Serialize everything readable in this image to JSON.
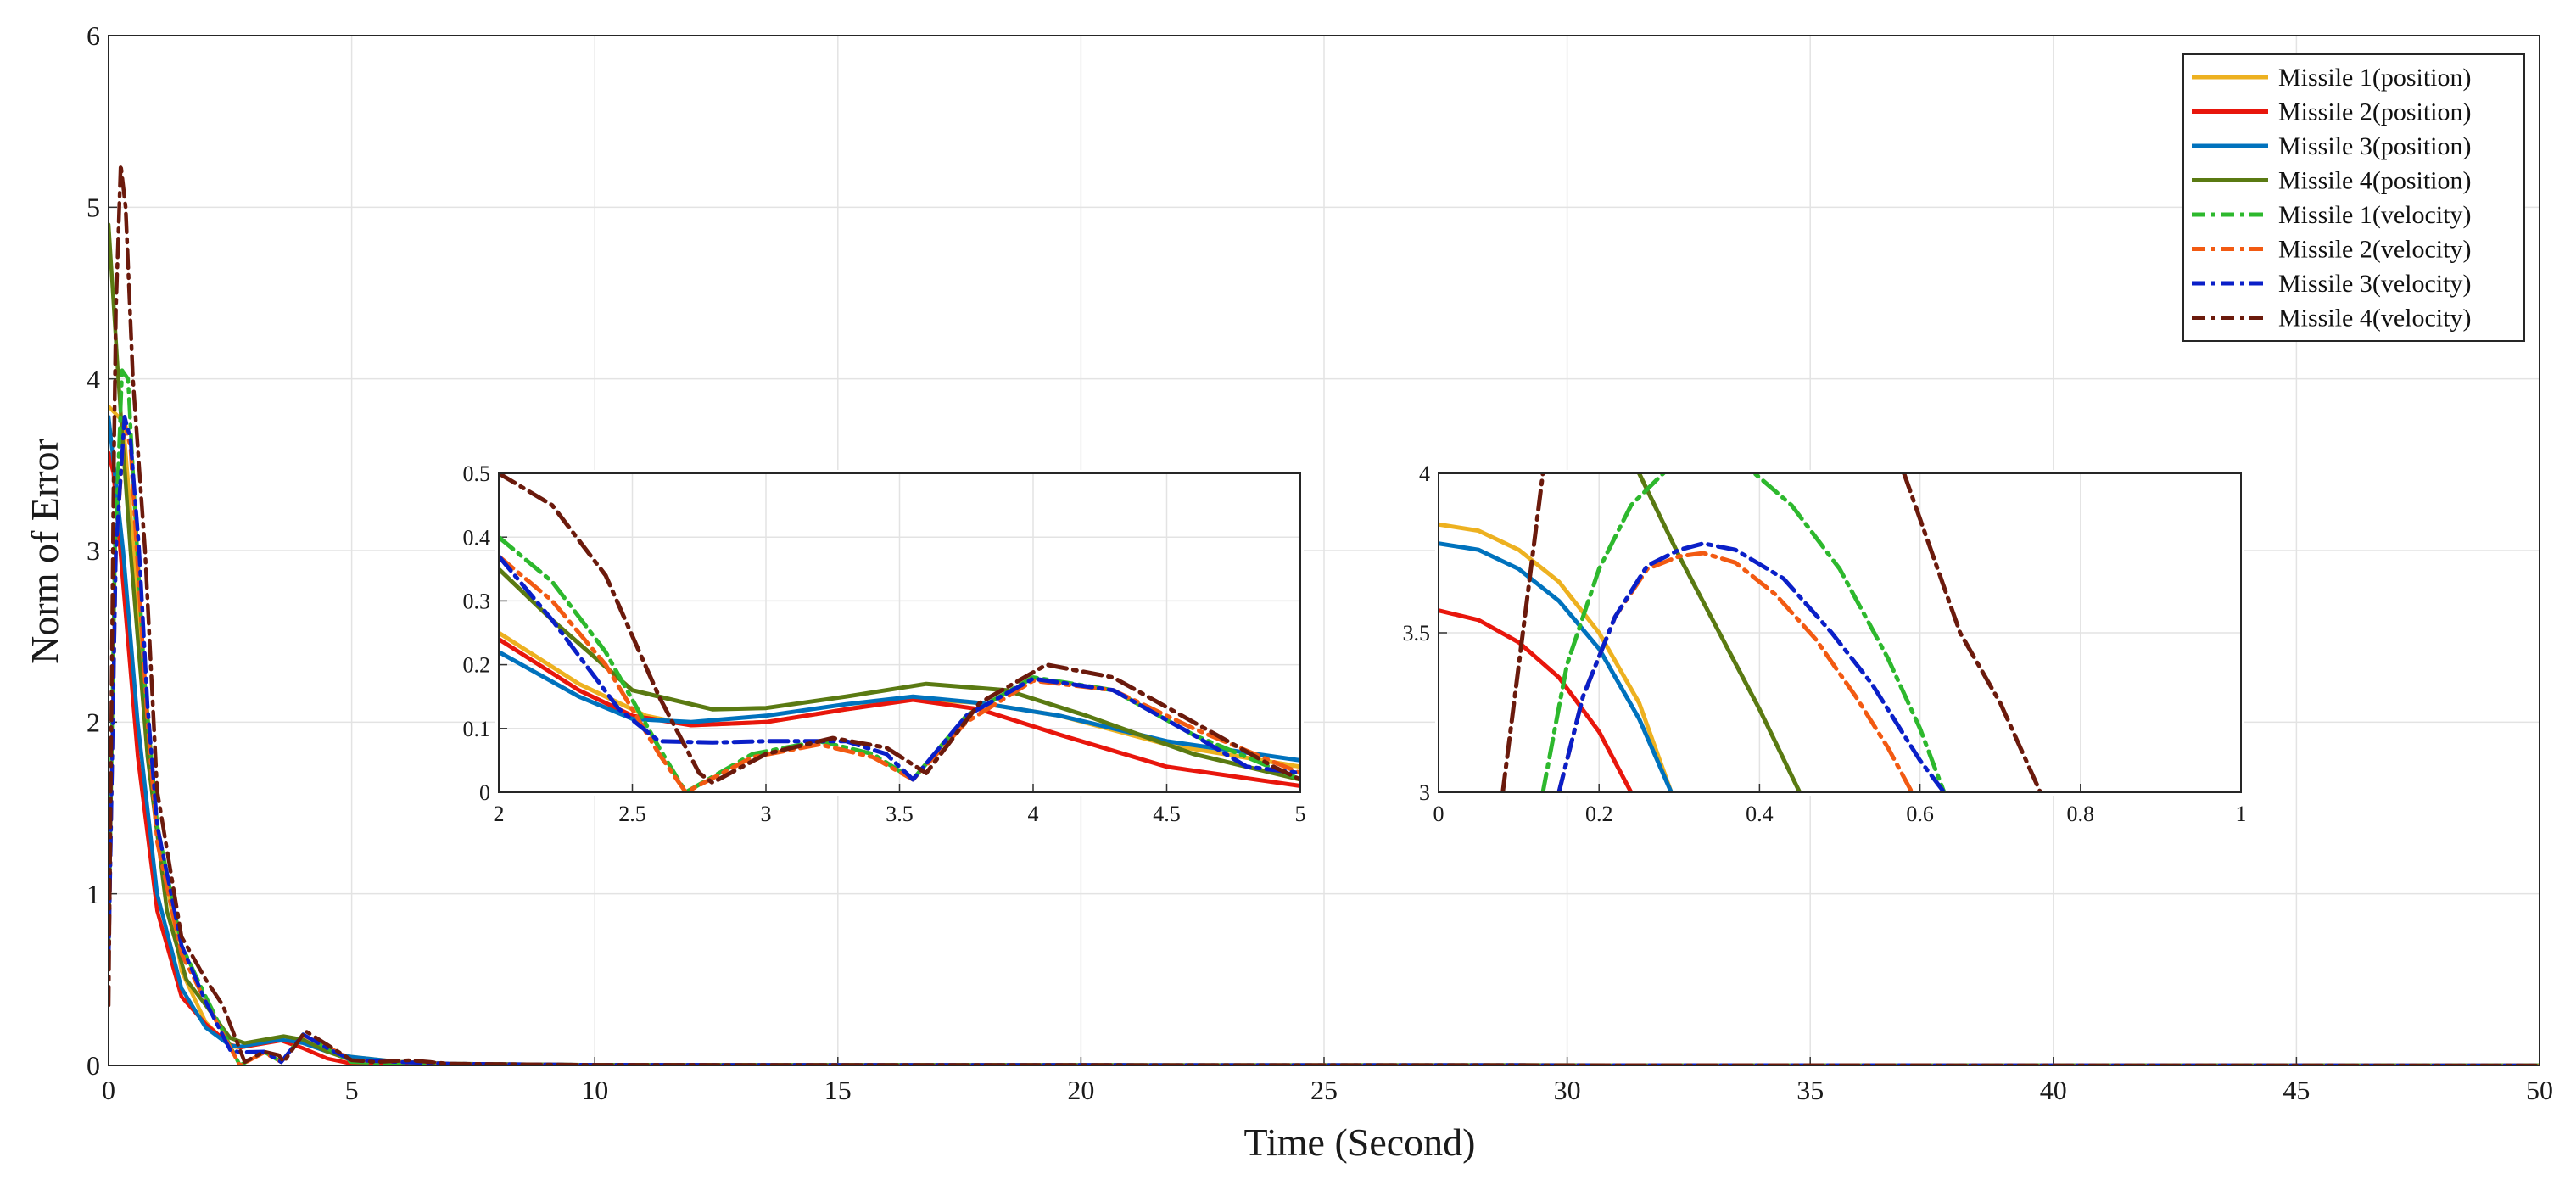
{
  "chart_data": {
    "type": "line",
    "xlabel": "Time (Second)",
    "ylabel": "Norm of Error",
    "xlim": [
      0,
      50
    ],
    "ylim": [
      0,
      6
    ],
    "grid": true,
    "legend_position": "top-right",
    "xticks": [
      "0",
      "5",
      "10",
      "15",
      "20",
      "25",
      "30",
      "35",
      "40",
      "45",
      "50"
    ],
    "yticks": [
      "0",
      "1",
      "2",
      "3",
      "4",
      "5",
      "6"
    ],
    "series": [
      {
        "name": "Missile 1(position)",
        "color": "#EDB120",
        "dash": "solid",
        "x": [
          0,
          0.3,
          0.6,
          1.0,
          1.5,
          2.0,
          2.5,
          2.72,
          3.2,
          3.55,
          4.0,
          4.5,
          5,
          6,
          7,
          10,
          50
        ],
        "y": [
          3.84,
          3.75,
          2.7,
          1.4,
          0.55,
          0.25,
          0.11,
          0.105,
          0.13,
          0.147,
          0.13,
          0.08,
          0.05,
          0.02,
          0.01,
          0.003,
          0.0
        ]
      },
      {
        "name": "Missile 2(position)",
        "color": "#E8160C",
        "dash": "solid",
        "x": [
          0,
          0.1,
          0.24,
          0.6,
          1.0,
          1.5,
          2.0,
          2.5,
          2.72,
          3.55,
          4.0,
          4.5,
          5,
          6,
          7,
          10,
          50
        ],
        "y": [
          3.57,
          3.45,
          3.0,
          1.8,
          0.9,
          0.4,
          0.24,
          0.12,
          0.105,
          0.145,
          0.1,
          0.04,
          0.01,
          0.01,
          0.005,
          0.002,
          0.0
        ]
      },
      {
        "name": "Missile 3(position)",
        "color": "#0072BD",
        "dash": "solid",
        "x": [
          0,
          0.3,
          0.6,
          1.0,
          1.5,
          2.0,
          2.5,
          2.72,
          3.55,
          4.0,
          4.5,
          5,
          6,
          7,
          10,
          50
        ],
        "y": [
          3.78,
          3.0,
          2.0,
          1.0,
          0.45,
          0.22,
          0.115,
          0.11,
          0.15,
          0.13,
          0.08,
          0.05,
          0.02,
          0.01,
          0.003,
          0.0
        ]
      },
      {
        "name": "Missile 4(position)",
        "color": "#5A7A12",
        "dash": "solid",
        "x": [
          0,
          0.2,
          0.45,
          0.8,
          1.2,
          1.6,
          2.0,
          2.5,
          2.8,
          3.6,
          4.0,
          4.5,
          5,
          6,
          7,
          10,
          50
        ],
        "y": [
          4.9,
          4.0,
          3.0,
          1.8,
          0.9,
          0.5,
          0.35,
          0.16,
          0.13,
          0.17,
          0.15,
          0.08,
          0.03,
          0.02,
          0.01,
          0.003,
          0.0
        ]
      },
      {
        "name": "Missile 1(velocity)",
        "color": "#2DB82D",
        "dash": "dashdot",
        "x": [
          0,
          0.13,
          0.28,
          0.4,
          0.55,
          0.75,
          1.0,
          1.5,
          2.0,
          2.7,
          3.2,
          3.55,
          4.0,
          4.5,
          5,
          6,
          7,
          10,
          50
        ],
        "y": [
          0.7,
          3.0,
          4.05,
          4.0,
          3.2,
          2.2,
          1.4,
          0.7,
          0.4,
          0.0,
          0.08,
          0.02,
          0.18,
          0.1,
          0.02,
          0.01,
          0.005,
          0.002,
          0.0
        ]
      },
      {
        "name": "Missile 2(velocity)",
        "color": "#F25A12",
        "dash": "dashdot",
        "x": [
          0,
          0.15,
          0.33,
          0.45,
          0.6,
          0.8,
          1.0,
          1.5,
          2.0,
          2.7,
          3.2,
          3.55,
          4.0,
          4.5,
          5,
          6,
          7,
          10,
          50
        ],
        "y": [
          0.6,
          3.0,
          3.75,
          3.6,
          2.9,
          2.0,
          1.3,
          0.65,
          0.37,
          0.0,
          0.075,
          0.02,
          0.175,
          0.11,
          0.03,
          0.02,
          0.01,
          0.002,
          0.0
        ]
      },
      {
        "name": "Missile 3(velocity)",
        "color": "#0A1FC8",
        "dash": "dashdot",
        "x": [
          0,
          0.15,
          0.33,
          0.45,
          0.63,
          0.8,
          1.0,
          1.5,
          2.0,
          2.5,
          2.7,
          3.2,
          3.55,
          4.0,
          4.5,
          5,
          6,
          7,
          10,
          50
        ],
        "y": [
          0.6,
          3.0,
          3.78,
          3.65,
          3.0,
          2.1,
          1.4,
          0.7,
          0.37,
          0.09,
          0.077,
          0.08,
          0.02,
          0.18,
          0.1,
          0.03,
          0.02,
          0.01,
          0.003,
          0.0
        ]
      },
      {
        "name": "Missile 4(velocity)",
        "color": "#6B1A0C",
        "dash": "dashdot",
        "x": [
          0,
          0.05,
          0.1,
          0.15,
          0.25,
          0.35,
          0.5,
          0.75,
          1.0,
          1.5,
          2.0,
          2.35,
          2.8,
          3.2,
          3.5,
          3.6,
          4.05,
          4.5,
          5,
          5.5,
          6.2,
          7,
          10,
          50
        ],
        "y": [
          0.35,
          1.8,
          3.3,
          4.4,
          5.25,
          5.0,
          4.0,
          3.0,
          1.6,
          0.75,
          0.5,
          0.35,
          0.02,
          0.08,
          0.06,
          0.02,
          0.2,
          0.12,
          0.03,
          0.02,
          0.03,
          0.01,
          0.003,
          0.0
        ]
      }
    ],
    "insets": [
      {
        "xlim": [
          2,
          5
        ],
        "ylim": [
          0,
          0.5
        ],
        "xticks": [
          "2",
          "2.5",
          "3",
          "3.5",
          "4",
          "4.5",
          "5"
        ],
        "yticks": [
          "0",
          "0.1",
          "0.2",
          "0.3",
          "0.4",
          "0.5"
        ],
        "series": [
          {
            "x": [
              2.0,
              2.3,
              2.55,
              2.72,
              3.0,
              3.3,
              3.55,
              3.8,
              4.1,
              4.5,
              5.0
            ],
            "y": [
              0.25,
              0.17,
              0.12,
              0.105,
              0.11,
              0.13,
              0.147,
              0.14,
              0.12,
              0.075,
              0.04
            ]
          },
          {
            "x": [
              2.0,
              2.3,
              2.5,
              2.72,
              3.0,
              3.3,
              3.55,
              3.8,
              4.1,
              4.5,
              5.0
            ],
            "y": [
              0.24,
              0.16,
              0.12,
              0.105,
              0.11,
              0.13,
              0.145,
              0.13,
              0.09,
              0.04,
              0.01
            ]
          },
          {
            "x": [
              2.0,
              2.3,
              2.5,
              2.72,
              3.0,
              3.3,
              3.55,
              3.8,
              4.1,
              4.5,
              5.0
            ],
            "y": [
              0.22,
              0.15,
              0.115,
              0.11,
              0.12,
              0.138,
              0.15,
              0.14,
              0.12,
              0.08,
              0.05
            ]
          },
          {
            "x": [
              2.0,
              2.2,
              2.5,
              2.8,
              3.0,
              3.3,
              3.6,
              3.9,
              4.2,
              4.6,
              5.0
            ],
            "y": [
              0.35,
              0.27,
              0.16,
              0.13,
              0.132,
              0.15,
              0.17,
              0.16,
              0.12,
              0.06,
              0.02
            ]
          },
          {
            "x": [
              2.0,
              2.2,
              2.4,
              2.6,
              2.7,
              2.95,
              3.2,
              3.4,
              3.55,
              3.75,
              4.0,
              4.3,
              4.6,
              5.0
            ],
            "y": [
              0.4,
              0.33,
              0.22,
              0.07,
              0.0,
              0.06,
              0.08,
              0.06,
              0.02,
              0.12,
              0.18,
              0.16,
              0.09,
              0.02
            ]
          },
          {
            "x": [
              2.0,
              2.2,
              2.4,
              2.6,
              2.7,
              2.95,
              3.2,
              3.4,
              3.55,
              3.75,
              4.0,
              4.3,
              4.6,
              5.0
            ],
            "y": [
              0.37,
              0.3,
              0.2,
              0.06,
              0.0,
              0.055,
              0.075,
              0.055,
              0.02,
              0.11,
              0.175,
              0.16,
              0.1,
              0.03
            ]
          },
          {
            "x": [
              2.0,
              2.2,
              2.45,
              2.6,
              2.8,
              3.0,
              3.3,
              3.45,
              3.55,
              3.75,
              4.0,
              4.3,
              4.6,
              4.8,
              5.0
            ],
            "y": [
              0.37,
              0.27,
              0.13,
              0.08,
              0.078,
              0.08,
              0.08,
              0.06,
              0.02,
              0.12,
              0.178,
              0.16,
              0.09,
              0.04,
              0.03
            ]
          },
          {
            "x": [
              2.0,
              2.2,
              2.4,
              2.6,
              2.75,
              2.8,
              3.0,
              3.25,
              3.45,
              3.6,
              3.8,
              4.05,
              4.3,
              4.6,
              4.9,
              5.0
            ],
            "y": [
              0.5,
              0.45,
              0.34,
              0.15,
              0.03,
              0.015,
              0.06,
              0.085,
              0.07,
              0.03,
              0.14,
              0.2,
              0.18,
              0.11,
              0.04,
              0.02
            ]
          }
        ]
      },
      {
        "xlim": [
          0,
          1
        ],
        "ylim": [
          3,
          4
        ],
        "xticks": [
          "0",
          "0.2",
          "0.4",
          "0.6",
          "0.8",
          "1"
        ],
        "yticks": [
          "3",
          "3.5",
          "4"
        ],
        "series": [
          {
            "x": [
              0.0,
              0.05,
              0.1,
              0.15,
              0.2,
              0.25,
              0.29
            ],
            "y": [
              3.84,
              3.82,
              3.76,
              3.66,
              3.5,
              3.28,
              3.0
            ]
          },
          {
            "x": [
              0.0,
              0.05,
              0.1,
              0.15,
              0.2,
              0.24
            ],
            "y": [
              3.57,
              3.54,
              3.47,
              3.36,
              3.19,
              3.0
            ]
          },
          {
            "x": [
              0.0,
              0.05,
              0.1,
              0.15,
              0.2,
              0.25,
              0.29
            ],
            "y": [
              3.78,
              3.76,
              3.7,
              3.6,
              3.45,
              3.23,
              3.0
            ]
          },
          {
            "x": [
              0.25,
              0.3,
              0.35,
              0.4,
              0.45
            ],
            "y": [
              4.0,
              3.74,
              3.5,
              3.26,
              3.0
            ]
          },
          {
            "x": [
              0.13,
              0.16,
              0.2,
              0.24,
              0.28,
              0.3,
              0.33,
              0.38,
              0.44,
              0.5,
              0.56,
              0.6,
              0.63
            ],
            "y": [
              3.0,
              3.4,
              3.7,
              3.9,
              4.0,
              4.05,
              4.07,
              4.03,
              3.9,
              3.7,
              3.42,
              3.2,
              3.0
            ]
          },
          {
            "x": [
              0.15,
              0.18,
              0.22,
              0.26,
              0.3,
              0.33,
              0.37,
              0.42,
              0.47,
              0.52,
              0.56,
              0.59
            ],
            "y": [
              3.0,
              3.3,
              3.55,
              3.7,
              3.74,
              3.75,
              3.72,
              3.62,
              3.48,
              3.3,
              3.14,
              3.0
            ]
          },
          {
            "x": [
              0.15,
              0.18,
              0.22,
              0.26,
              0.3,
              0.33,
              0.37,
              0.43,
              0.49,
              0.54,
              0.6,
              0.63
            ],
            "y": [
              3.0,
              3.3,
              3.55,
              3.71,
              3.76,
              3.78,
              3.76,
              3.67,
              3.5,
              3.34,
              3.1,
              3.0
            ]
          },
          {
            "x": [
              0.08,
              0.11,
              0.13
            ],
            "y": [
              3.0,
              3.6,
              4.0
            ]
          },
          {
            "x": [
              0.58,
              0.65,
              0.7,
              0.75
            ],
            "y": [
              4.0,
              3.5,
              3.28,
              3.0
            ]
          }
        ]
      }
    ]
  }
}
